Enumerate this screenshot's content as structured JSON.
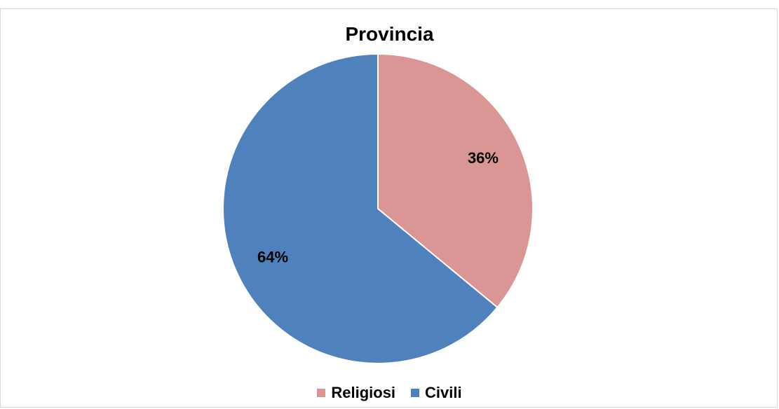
{
  "chart_data": {
    "type": "pie",
    "title": "Provincia",
    "categories": [
      "Religiosi",
      "Civili"
    ],
    "values": [
      36,
      64
    ],
    "data_labels": [
      "36%",
      "64%"
    ],
    "colors": [
      "#d99694",
      "#4f81bd"
    ],
    "legend_position": "bottom"
  }
}
